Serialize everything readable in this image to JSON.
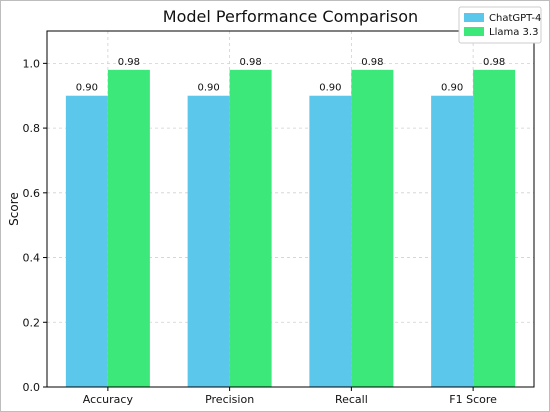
{
  "chart_data": {
    "type": "bar",
    "title": "Model Performance Comparison",
    "xlabel": "",
    "ylabel": "Score",
    "categories": [
      "Accuracy",
      "Precision",
      "Recall",
      "F1 Score"
    ],
    "series": [
      {
        "name": "ChatGPT-4",
        "values": [
          0.9,
          0.9,
          0.9,
          0.9
        ],
        "labels": [
          "0.90",
          "0.90",
          "0.90",
          "0.90"
        ],
        "color": "#5BC8EB"
      },
      {
        "name": "Llama 3.3",
        "values": [
          0.98,
          0.98,
          0.98,
          0.98
        ],
        "labels": [
          "0.98",
          "0.98",
          "0.98",
          "0.98"
        ],
        "color": "#3DE87A"
      }
    ],
    "ylim": [
      0,
      1.1
    ],
    "yticks": [
      0.0,
      0.2,
      0.4,
      0.6,
      0.8,
      1.0
    ],
    "ytick_labels": [
      "0.0",
      "0.2",
      "0.4",
      "0.6",
      "0.8",
      "1.0"
    ],
    "grid": true,
    "legend_position": "top-right"
  }
}
